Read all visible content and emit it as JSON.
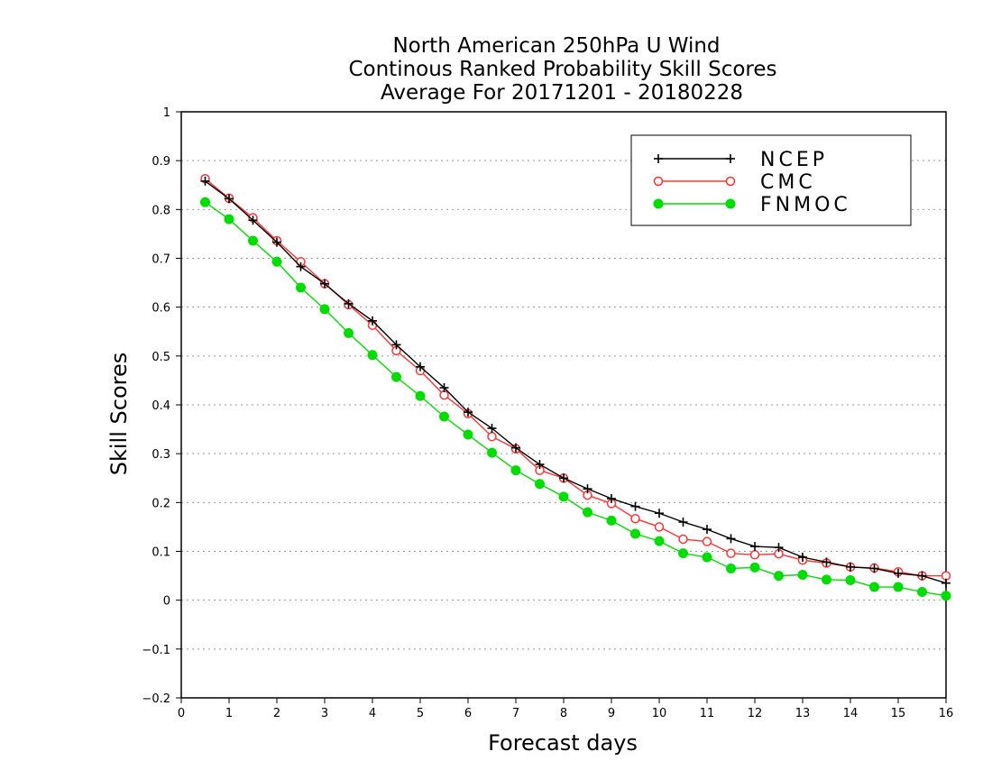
{
  "chart_data": {
    "type": "line",
    "title": [
      "North American 250hPa U Wind",
      "Continous Ranked Probability Skill Scores",
      "Average For 20171201 - 20180228"
    ],
    "xlabel": "Forecast days",
    "ylabel": "Skill Scores",
    "xlim": [
      0,
      16
    ],
    "ylim": [
      -0.2,
      1
    ],
    "xticks": [
      "0",
      "1",
      "2",
      "3",
      "4",
      "5",
      "6",
      "7",
      "8",
      "9",
      "10",
      "11",
      "12",
      "13",
      "14",
      "15",
      "16"
    ],
    "yticks": [
      "-0.2",
      "-0.1",
      "0",
      "0.1",
      "0.2",
      "0.3",
      "0.4",
      "0.5",
      "0.6",
      "0.7",
      "0.8",
      "0.9",
      "1"
    ],
    "grid": "horizontal dotted",
    "legend_position": "top-right",
    "x": [
      0.5,
      1,
      1.5,
      2,
      2.5,
      3,
      3.5,
      4,
      4.5,
      5,
      5.5,
      6,
      6.5,
      7,
      7.5,
      8,
      8.5,
      9,
      9.5,
      10,
      10.5,
      11,
      11.5,
      12,
      12.5,
      13,
      13.5,
      14,
      14.5,
      15,
      15.5,
      16
    ],
    "series": [
      {
        "name": "NCEP",
        "color": "#000000",
        "marker": "plus",
        "values": [
          0.858,
          0.822,
          0.778,
          0.733,
          0.683,
          0.648,
          0.607,
          0.572,
          0.523,
          0.478,
          0.435,
          0.385,
          0.352,
          0.312,
          0.278,
          0.25,
          0.228,
          0.208,
          0.192,
          0.178,
          0.16,
          0.145,
          0.126,
          0.11,
          0.108,
          0.088,
          0.078,
          0.068,
          0.065,
          0.055,
          0.05,
          0.035
        ]
      },
      {
        "name": "CMC",
        "color": "#ff3333",
        "marker": "open-circle",
        "values": [
          0.863,
          0.823,
          0.783,
          0.736,
          0.693,
          0.648,
          0.605,
          0.563,
          0.511,
          0.47,
          0.42,
          0.382,
          0.335,
          0.31,
          0.266,
          0.25,
          0.215,
          0.198,
          0.167,
          0.15,
          0.125,
          0.12,
          0.096,
          0.093,
          0.095,
          0.082,
          0.076,
          0.068,
          0.066,
          0.058,
          0.05,
          0.05
        ]
      },
      {
        "name": "FNMOC",
        "color": "#00dd00",
        "marker": "filled-circle",
        "values": [
          0.815,
          0.78,
          0.736,
          0.693,
          0.64,
          0.596,
          0.547,
          0.502,
          0.457,
          0.418,
          0.376,
          0.339,
          0.302,
          0.266,
          0.238,
          0.212,
          0.18,
          0.163,
          0.136,
          0.121,
          0.096,
          0.088,
          0.065,
          0.067,
          0.05,
          0.052,
          0.042,
          0.041,
          0.027,
          0.027,
          0.017,
          0.009
        ]
      }
    ]
  }
}
